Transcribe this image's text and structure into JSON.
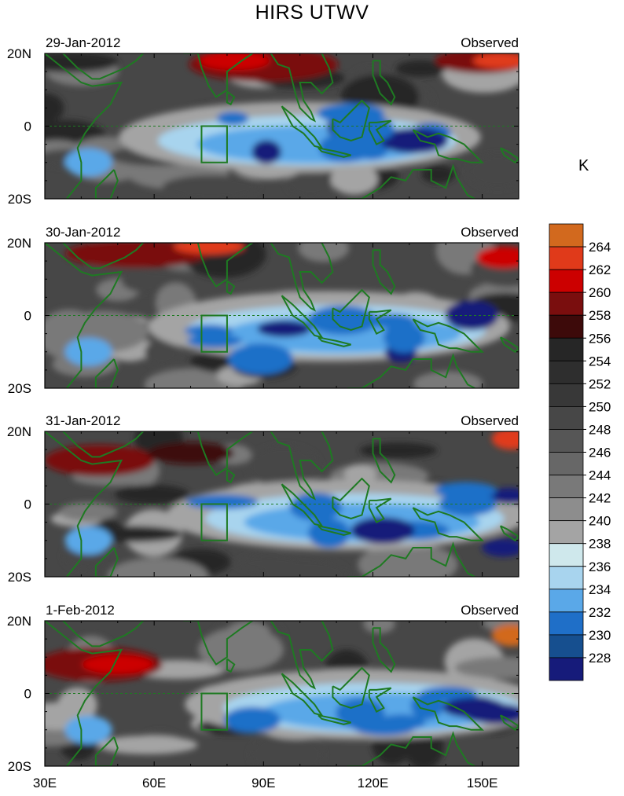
{
  "title": "HIRS UTWV",
  "unit": "K",
  "panel_right_label": "Observed",
  "panels": [
    {
      "date": "29-Jan-2012"
    },
    {
      "date": "30-Jan-2012"
    },
    {
      "date": "31-Jan-2012"
    },
    {
      "date": "1-Feb-2012"
    }
  ],
  "lat_labels": [
    "20N",
    "0",
    "20S"
  ],
  "lon_labels": [
    "30E",
    "60E",
    "90E",
    "120E",
    "150E"
  ],
  "colorbar": {
    "levels": [
      "264",
      "262",
      "260",
      "258",
      "256",
      "254",
      "252",
      "250",
      "248",
      "246",
      "244",
      "242",
      "240",
      "238",
      "236",
      "234",
      "232",
      "230",
      "228"
    ],
    "colors": [
      "#d2691e",
      "#e03a1a",
      "#cc0000",
      "#7a0e0e",
      "#3d0a0a",
      "#262626",
      "#2e2e2e",
      "#383838",
      "#474747",
      "#565656",
      "#676767",
      "#797979",
      "#8d8d8d",
      "#a4a4a4",
      "#cfe8ec",
      "#a8d4ee",
      "#5aa8e8",
      "#1f6fc8",
      "#164f8f",
      "#161b7a"
    ]
  },
  "map_extent": {
    "lon_min": 30,
    "lon_max": 160,
    "lat_min": -20,
    "lat_max": 20
  },
  "box_region": {
    "lon_min": 73,
    "lon_max": 80,
    "lat_min": -10,
    "lat_max": 0
  }
}
